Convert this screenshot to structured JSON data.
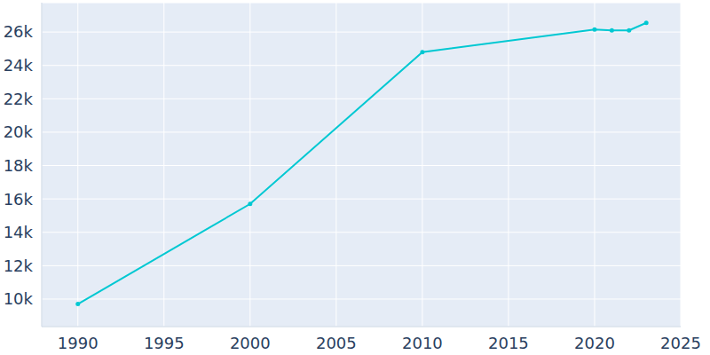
{
  "chart_data": {
    "type": "line",
    "x": [
      1990,
      2000,
      2010,
      2020,
      2021,
      2022,
      2023
    ],
    "values": [
      9700,
      15700,
      24800,
      26150,
      26100,
      26100,
      26550
    ],
    "color": "#00c8d2",
    "marker": "circle",
    "xlim": [
      1987.9,
      2025
    ],
    "xticks": [
      1990,
      1995,
      2000,
      2005,
      2010,
      2015,
      2020,
      2025
    ],
    "ylim": [
      8350,
      27760
    ],
    "yticks": [
      {
        "value": 10000,
        "label": "10k"
      },
      {
        "value": 12000,
        "label": "12k"
      },
      {
        "value": 14000,
        "label": "14k"
      },
      {
        "value": 16000,
        "label": "16k"
      },
      {
        "value": 18000,
        "label": "18k"
      },
      {
        "value": 20000,
        "label": "20k"
      },
      {
        "value": 22000,
        "label": "22k"
      },
      {
        "value": 24000,
        "label": "24k"
      },
      {
        "value": 26000,
        "label": "26k"
      }
    ],
    "grid": true
  }
}
